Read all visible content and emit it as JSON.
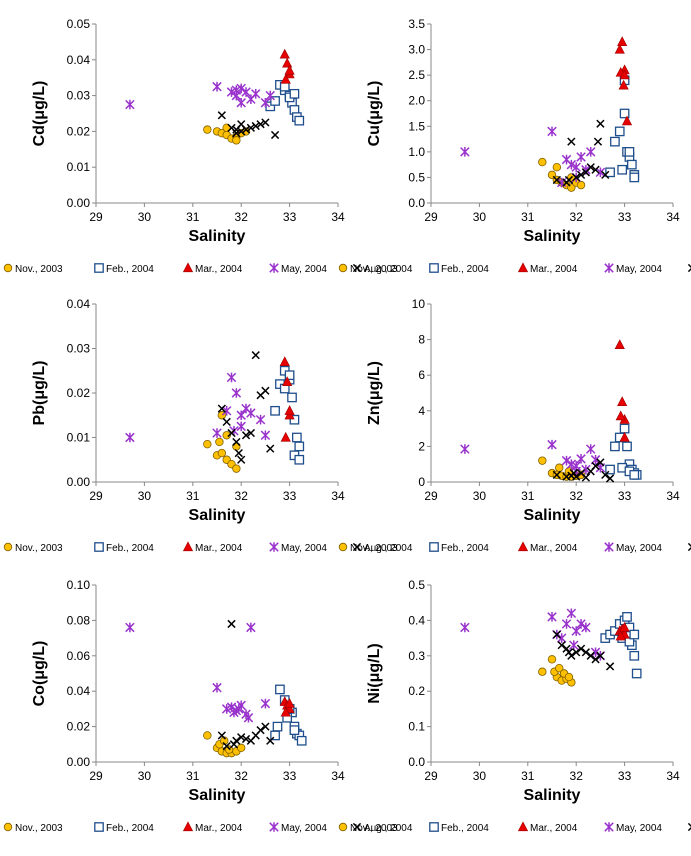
{
  "chart_data": [
    {
      "id": "cd",
      "type": "scatter",
      "ylabel": "Cd(μg/L)",
      "xlabel": "Salinity",
      "xlim": [
        29,
        34
      ],
      "ylim": [
        0,
        0.05
      ],
      "xticks": [
        29,
        30,
        31,
        32,
        33,
        34
      ],
      "yticks": [
        "0.00",
        "0.01",
        "0.02",
        "0.03",
        "0.04",
        "0.05"
      ],
      "series": [
        {
          "name": "Nov., 2003",
          "x": [
            31.3,
            31.5,
            31.6,
            31.7,
            31.8,
            31.9,
            32.0,
            32.1,
            31.7,
            31.9
          ],
          "y": [
            0.0205,
            0.02,
            0.0195,
            0.019,
            0.018,
            0.0185,
            0.0195,
            0.02,
            0.021,
            0.0175
          ]
        },
        {
          "name": "Feb., 2004",
          "x": [
            32.6,
            32.7,
            32.8,
            32.9,
            33.0,
            33.05,
            33.1,
            33.15,
            33.2,
            33.0,
            33.1,
            32.9
          ],
          "y": [
            0.027,
            0.0285,
            0.033,
            0.0315,
            0.03,
            0.028,
            0.026,
            0.024,
            0.023,
            0.0295,
            0.0305,
            0.0325
          ]
        },
        {
          "name": "Mar., 2004",
          "x": [
            32.9,
            32.95,
            33.0,
            32.92,
            33.0
          ],
          "y": [
            0.0415,
            0.039,
            0.036,
            0.0345,
            0.037
          ]
        },
        {
          "name": "May, 2004",
          "x": [
            29.7,
            31.5,
            31.8,
            31.9,
            32.0,
            32.1,
            32.2,
            32.0,
            31.9,
            32.3,
            32.5,
            32.6
          ],
          "y": [
            0.0275,
            0.0325,
            0.031,
            0.03,
            0.032,
            0.031,
            0.029,
            0.028,
            0.0315,
            0.0305,
            0.028,
            0.03
          ]
        },
        {
          "name": "Aug., 2004",
          "x": [
            31.6,
            31.8,
            31.9,
            32.0,
            32.1,
            32.2,
            32.3,
            32.4,
            32.5,
            32.7,
            32.0,
            31.9
          ],
          "y": [
            0.0245,
            0.021,
            0.0205,
            0.022,
            0.0205,
            0.021,
            0.0215,
            0.022,
            0.0225,
            0.019,
            0.02,
            0.0195
          ]
        }
      ]
    },
    {
      "id": "cu",
      "type": "scatter",
      "ylabel": "Cu(μg/L)",
      "xlabel": "Salinity",
      "xlim": [
        29,
        34
      ],
      "ylim": [
        0,
        3.5
      ],
      "xticks": [
        29,
        30,
        31,
        32,
        33,
        34
      ],
      "yticks": [
        "0.0",
        "0.5",
        "1.0",
        "1.5",
        "2.0",
        "2.5",
        "3.0",
        "3.5"
      ],
      "series": [
        {
          "name": "Nov., 2003",
          "x": [
            31.3,
            31.5,
            31.6,
            31.7,
            31.8,
            31.9,
            32.0,
            32.1,
            31.6,
            31.9
          ],
          "y": [
            0.8,
            0.55,
            0.45,
            0.4,
            0.35,
            0.3,
            0.4,
            0.35,
            0.7,
            0.5
          ]
        },
        {
          "name": "Feb., 2004",
          "x": [
            32.7,
            32.8,
            32.9,
            33.0,
            33.05,
            33.1,
            33.15,
            33.2,
            33.0,
            32.95,
            33.1,
            33.2
          ],
          "y": [
            0.6,
            1.2,
            1.4,
            1.75,
            1.0,
            0.9,
            0.75,
            0.55,
            2.4,
            0.65,
            1.0,
            0.5
          ]
        },
        {
          "name": "Mar., 2004",
          "x": [
            32.9,
            32.95,
            33.0,
            32.92,
            33.0,
            33.05,
            32.98
          ],
          "y": [
            3.0,
            3.15,
            2.6,
            2.55,
            2.5,
            1.6,
            2.3
          ]
        },
        {
          "name": "May, 2004",
          "x": [
            29.7,
            31.5,
            31.8,
            31.9,
            32.0,
            32.1,
            32.2,
            32.3,
            32.0,
            32.5,
            31.7
          ],
          "y": [
            1.0,
            1.4,
            0.85,
            0.75,
            0.7,
            0.9,
            0.65,
            1.0,
            0.5,
            0.6,
            0.4
          ]
        },
        {
          "name": "Aug., 2004",
          "x": [
            31.6,
            31.8,
            31.9,
            32.0,
            32.1,
            32.2,
            32.3,
            32.4,
            32.5,
            32.6,
            31.85,
            32.45
          ],
          "y": [
            0.45,
            0.4,
            1.2,
            0.5,
            0.55,
            0.6,
            0.7,
            0.65,
            1.55,
            0.55,
            0.45,
            1.2
          ]
        }
      ]
    },
    {
      "id": "pb",
      "type": "scatter",
      "ylabel": "Pb(μg/L)",
      "xlabel": "Salinity",
      "xlim": [
        29,
        34
      ],
      "ylim": [
        0,
        0.04
      ],
      "xticks": [
        29,
        30,
        31,
        32,
        33,
        34
      ],
      "yticks": [
        "0.00",
        "0.01",
        "0.02",
        "0.03",
        "0.04"
      ],
      "series": [
        {
          "name": "Nov., 2003",
          "x": [
            31.3,
            31.5,
            31.6,
            31.7,
            31.8,
            31.9,
            31.6,
            31.7,
            31.9,
            31.55
          ],
          "y": [
            0.0085,
            0.006,
            0.0065,
            0.005,
            0.004,
            0.003,
            0.015,
            0.0105,
            0.008,
            0.009
          ]
        },
        {
          "name": "Feb., 2004",
          "x": [
            32.7,
            32.8,
            32.9,
            33.0,
            33.05,
            33.1,
            33.15,
            33.2,
            33.0,
            32.9,
            33.1,
            33.2
          ],
          "y": [
            0.016,
            0.022,
            0.025,
            0.023,
            0.019,
            0.014,
            0.01,
            0.008,
            0.024,
            0.021,
            0.006,
            0.005
          ]
        },
        {
          "name": "Mar., 2004",
          "x": [
            32.9,
            32.95,
            33.0,
            32.92,
            33.0
          ],
          "y": [
            0.027,
            0.0225,
            0.015,
            0.01,
            0.016
          ]
        },
        {
          "name": "May, 2004",
          "x": [
            29.7,
            31.5,
            31.7,
            31.8,
            31.9,
            32.0,
            32.1,
            32.2,
            32.4,
            31.85,
            32.5,
            32.0
          ],
          "y": [
            0.01,
            0.011,
            0.016,
            0.0235,
            0.02,
            0.015,
            0.0165,
            0.0155,
            0.014,
            0.0115,
            0.0105,
            0.0125
          ]
        },
        {
          "name": "Aug., 2004",
          "x": [
            31.6,
            31.7,
            31.8,
            31.9,
            32.0,
            32.1,
            32.2,
            32.3,
            32.4,
            32.6,
            31.95,
            32.5
          ],
          "y": [
            0.0165,
            0.0135,
            0.011,
            0.009,
            0.005,
            0.0105,
            0.011,
            0.0285,
            0.0195,
            0.0075,
            0.0065,
            0.0205
          ]
        }
      ]
    },
    {
      "id": "zn",
      "type": "scatter",
      "ylabel": "Zn(μg/L)",
      "xlabel": "Salinity",
      "xlim": [
        29,
        34
      ],
      "ylim": [
        0,
        10
      ],
      "xticks": [
        29,
        30,
        31,
        32,
        33,
        34
      ],
      "yticks": [
        "0",
        "2",
        "4",
        "6",
        "8",
        "10"
      ],
      "series": [
        {
          "name": "Nov., 2003",
          "x": [
            31.3,
            31.5,
            31.6,
            31.7,
            31.8,
            31.9,
            32.0,
            32.1,
            31.65,
            31.85
          ],
          "y": [
            1.2,
            0.5,
            0.4,
            0.35,
            0.3,
            0.3,
            0.35,
            0.4,
            0.8,
            0.6
          ]
        },
        {
          "name": "Feb., 2004",
          "x": [
            32.7,
            32.8,
            32.9,
            33.0,
            33.05,
            33.1,
            33.15,
            33.2,
            33.25,
            32.95,
            33.1,
            33.2
          ],
          "y": [
            0.7,
            2.0,
            2.5,
            3.0,
            2.0,
            1.0,
            0.7,
            0.5,
            0.4,
            0.8,
            0.6,
            0.4
          ]
        },
        {
          "name": "Mar., 2004",
          "x": [
            32.9,
            32.95,
            33.0,
            32.92,
            33.0
          ],
          "y": [
            7.7,
            4.5,
            3.5,
            3.7,
            2.5
          ]
        },
        {
          "name": "May, 2004",
          "x": [
            29.7,
            31.5,
            31.8,
            31.9,
            32.0,
            32.1,
            32.2,
            32.3,
            32.4,
            32.0,
            32.5
          ],
          "y": [
            1.85,
            2.1,
            1.2,
            1.0,
            0.9,
            1.3,
            0.7,
            1.85,
            1.25,
            0.6,
            0.8
          ]
        },
        {
          "name": "Aug., 2004",
          "x": [
            31.6,
            31.8,
            31.9,
            32.0,
            32.1,
            32.2,
            32.3,
            32.4,
            32.5,
            32.6,
            32.7,
            31.95
          ],
          "y": [
            0.4,
            0.3,
            0.35,
            0.3,
            0.5,
            0.25,
            0.6,
            0.9,
            1.1,
            0.4,
            0.2,
            0.5
          ]
        }
      ]
    },
    {
      "id": "co",
      "type": "scatter",
      "ylabel": "Co(μg/L)",
      "xlabel": "Salinity",
      "xlim": [
        29,
        34
      ],
      "ylim": [
        0,
        0.1
      ],
      "xticks": [
        29,
        30,
        31,
        32,
        33,
        34
      ],
      "yticks": [
        "0.00",
        "0.02",
        "0.04",
        "0.06",
        "0.08",
        "0.10"
      ],
      "series": [
        {
          "name": "Nov., 2003",
          "x": [
            31.3,
            31.5,
            31.6,
            31.7,
            31.8,
            31.9,
            32.0,
            31.55,
            31.75,
            31.65
          ],
          "y": [
            0.015,
            0.008,
            0.006,
            0.005,
            0.005,
            0.006,
            0.008,
            0.01,
            0.007,
            0.012
          ]
        },
        {
          "name": "Feb., 2004",
          "x": [
            32.7,
            32.8,
            32.9,
            33.0,
            33.05,
            33.1,
            33.15,
            33.2,
            33.25,
            32.95,
            33.0,
            33.1,
            32.75
          ],
          "y": [
            0.015,
            0.041,
            0.035,
            0.03,
            0.028,
            0.02,
            0.016,
            0.015,
            0.012,
            0.025,
            0.03,
            0.018,
            0.02
          ]
        },
        {
          "name": "Mar., 2004",
          "x": [
            32.9,
            32.95,
            33.0,
            32.92,
            33.0
          ],
          "y": [
            0.034,
            0.032,
            0.03,
            0.028,
            0.033
          ]
        },
        {
          "name": "May, 2004",
          "x": [
            29.7,
            31.5,
            31.8,
            31.9,
            32.0,
            32.2,
            32.1,
            31.95,
            31.7,
            32.5,
            32.15,
            31.85
          ],
          "y": [
            0.076,
            0.042,
            0.031,
            0.029,
            0.032,
            0.076,
            0.027,
            0.03,
            0.03,
            0.033,
            0.025,
            0.028
          ]
        },
        {
          "name": "Aug., 2004",
          "x": [
            31.6,
            31.8,
            31.9,
            32.0,
            32.1,
            32.2,
            32.3,
            32.4,
            32.6,
            31.85,
            31.7,
            32.5
          ],
          "y": [
            0.015,
            0.078,
            0.012,
            0.014,
            0.013,
            0.012,
            0.015,
            0.018,
            0.012,
            0.01,
            0.009,
            0.02
          ]
        }
      ]
    },
    {
      "id": "ni",
      "type": "scatter",
      "ylabel": "Ni(μg/L)",
      "xlabel": "Salinity",
      "xlim": [
        29,
        34
      ],
      "ylim": [
        0,
        0.5
      ],
      "xticks": [
        29,
        30,
        31,
        32,
        33,
        34
      ],
      "yticks": [
        "0.0",
        "0.1",
        "0.2",
        "0.3",
        "0.4",
        "0.5"
      ],
      "series": [
        {
          "name": "Nov., 2003",
          "x": [
            31.3,
            31.5,
            31.6,
            31.7,
            31.8,
            31.9,
            31.55,
            31.65,
            31.75,
            31.85
          ],
          "y": [
            0.255,
            0.29,
            0.24,
            0.23,
            0.235,
            0.225,
            0.255,
            0.265,
            0.25,
            0.24
          ]
        },
        {
          "name": "Feb., 2004",
          "x": [
            32.6,
            32.7,
            32.8,
            32.9,
            33.0,
            33.05,
            33.1,
            33.15,
            33.2,
            33.25,
            32.95,
            33.1,
            33.2
          ],
          "y": [
            0.35,
            0.36,
            0.37,
            0.39,
            0.4,
            0.41,
            0.38,
            0.33,
            0.3,
            0.25,
            0.35,
            0.34,
            0.36
          ]
        },
        {
          "name": "Mar., 2004",
          "x": [
            32.9,
            32.95,
            33.0,
            32.92,
            33.0
          ],
          "y": [
            0.37,
            0.375,
            0.36,
            0.355,
            0.38
          ]
        },
        {
          "name": "May, 2004",
          "x": [
            29.7,
            31.5,
            31.8,
            31.9,
            32.0,
            32.1,
            32.2,
            31.7,
            31.95,
            32.4,
            32.5,
            31.6
          ],
          "y": [
            0.38,
            0.41,
            0.39,
            0.42,
            0.37,
            0.39,
            0.38,
            0.35,
            0.33,
            0.31,
            0.3,
            0.36
          ]
        },
        {
          "name": "Aug., 2004",
          "x": [
            31.6,
            31.7,
            31.8,
            31.9,
            32.0,
            32.1,
            32.2,
            32.3,
            32.4,
            32.5,
            32.7,
            31.85
          ],
          "y": [
            0.36,
            0.33,
            0.32,
            0.3,
            0.31,
            0.32,
            0.31,
            0.3,
            0.29,
            0.3,
            0.27,
            0.31
          ]
        }
      ]
    }
  ],
  "legend": {
    "entries": [
      "Nov., 2003",
      "Feb., 2004",
      "Mar., 2004",
      "May, 2004",
      "Aug., 2004"
    ]
  },
  "styles": {
    "Nov., 2003": {
      "marker": "circle",
      "color": "#ffc000",
      "stroke": "#7f6000"
    },
    "Feb., 2004": {
      "marker": "square",
      "color": "#ffffff",
      "stroke": "#1f4e8c"
    },
    "Mar., 2004": {
      "marker": "triangle",
      "color": "#e60000",
      "stroke": "#a00000"
    },
    "May, 2004": {
      "marker": "asterisk",
      "color": "#9933cc",
      "stroke": "#9933cc"
    },
    "Aug., 2004": {
      "marker": "cross",
      "color": "#000000",
      "stroke": "#000000"
    }
  }
}
